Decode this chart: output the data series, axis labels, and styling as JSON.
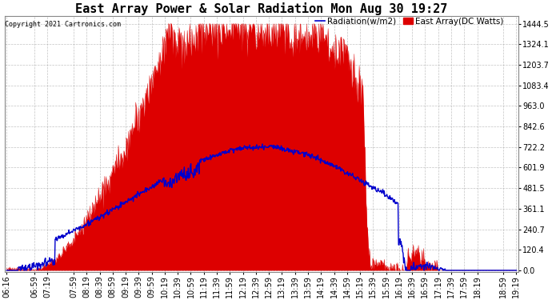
{
  "title": "East Array Power & Solar Radiation Mon Aug 30 19:27",
  "copyright": "Copyright 2021 Cartronics.com",
  "legend_radiation": "Radiation(w/m2)",
  "legend_array": "East Array(DC Watts)",
  "yticks": [
    0.0,
    120.4,
    240.7,
    361.1,
    481.5,
    601.9,
    722.2,
    842.6,
    963.0,
    1083.4,
    1203.7,
    1324.1,
    1444.5
  ],
  "ylim": [
    -10,
    1490
  ],
  "bg_color": "#ffffff",
  "plot_bg_color": "#ffffff",
  "grid_color": "#aaaaaa",
  "red_color": "#dd0000",
  "blue_color": "#0000cc",
  "title_fontsize": 11,
  "axis_fontsize": 7,
  "xtick_labels": [
    "06:16",
    "06:59",
    "07:19",
    "07:59",
    "08:19",
    "08:39",
    "08:59",
    "09:19",
    "09:39",
    "09:59",
    "10:19",
    "10:39",
    "10:59",
    "11:19",
    "11:39",
    "11:59",
    "12:19",
    "12:39",
    "12:59",
    "13:19",
    "13:39",
    "13:59",
    "14:19",
    "14:39",
    "14:59",
    "15:19",
    "15:39",
    "15:59",
    "16:19",
    "16:39",
    "16:59",
    "17:19",
    "17:39",
    "17:59",
    "18:19",
    "18:59",
    "19:19"
  ]
}
